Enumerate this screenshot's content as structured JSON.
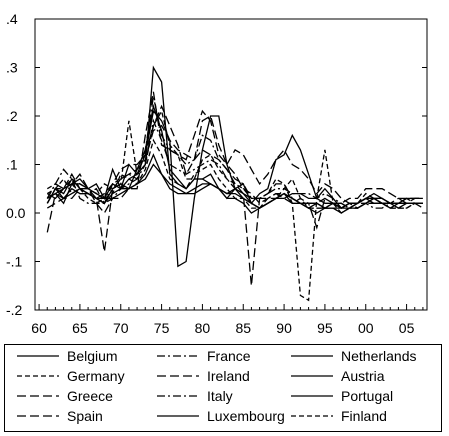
{
  "chart_data": {
    "type": "line",
    "title": "",
    "xlabel": "",
    "ylabel": "",
    "xlim": [
      1959.5,
      2007.5
    ],
    "ylim": [
      -0.2,
      0.4
    ],
    "x_ticks": [
      60,
      65,
      70,
      75,
      80,
      85,
      90,
      95,
      0,
      5
    ],
    "x_tick_labels": [
      "60",
      "65",
      "70",
      "75",
      "80",
      "85",
      "90",
      "95",
      "00",
      "05"
    ],
    "y_ticks": [
      0.4,
      0.3,
      0.2,
      0.1,
      0.0,
      -0.1,
      -0.2
    ],
    "y_tick_labels": [
      ".4",
      ".3",
      ".2",
      ".1",
      "0.0",
      "-.1",
      "-.2"
    ],
    "grid": false,
    "legend_position": "bottom",
    "x": [
      1961,
      1962,
      1963,
      1964,
      1965,
      1966,
      1967,
      1968,
      1969,
      1970,
      1971,
      1972,
      1973,
      1974,
      1975,
      1976,
      1977,
      1978,
      1979,
      1980,
      1981,
      1982,
      1983,
      1984,
      1985,
      1986,
      1987,
      1988,
      1989,
      1990,
      1991,
      1992,
      1993,
      1994,
      1995,
      1996,
      1997,
      1998,
      1999,
      2000,
      2001,
      2002,
      2003,
      2004,
      2005,
      2006,
      2007
    ],
    "series": [
      {
        "name": "Belgium",
        "dash": "solid",
        "values": [
          0.02,
          0.05,
          0.04,
          0.07,
          0.05,
          0.04,
          0.03,
          0.02,
          0.05,
          0.06,
          0.05,
          0.09,
          0.13,
          0.22,
          0.17,
          0.09,
          0.07,
          0.05,
          0.07,
          0.07,
          0.08,
          0.05,
          0.04,
          0.05,
          0.03,
          0.02,
          0.01,
          0.02,
          0.03,
          0.04,
          0.03,
          0.02,
          0.01,
          0.0,
          0.01,
          0.01,
          0.0,
          0.01,
          0.02,
          0.03,
          0.02,
          0.02,
          0.02,
          0.01,
          0.02,
          0.02,
          0.02
        ]
      },
      {
        "name": "France",
        "dash": "dashdot",
        "values": [
          0.03,
          0.06,
          0.05,
          0.06,
          0.04,
          0.04,
          0.05,
          0.02,
          0.06,
          0.07,
          0.08,
          0.07,
          0.1,
          0.19,
          0.15,
          0.1,
          0.09,
          0.08,
          0.09,
          0.1,
          0.11,
          0.1,
          0.07,
          0.05,
          0.04,
          0.03,
          0.03,
          0.03,
          0.04,
          0.04,
          0.03,
          0.02,
          0.01,
          0.01,
          0.01,
          0.02,
          0.01,
          0.02,
          0.02,
          0.02,
          0.01,
          0.01,
          0.02,
          0.02,
          0.02,
          0.02,
          0.02
        ]
      },
      {
        "name": "Netherlands",
        "dash": "solid",
        "values": [
          0.04,
          0.03,
          0.05,
          0.06,
          0.06,
          0.05,
          0.04,
          0.03,
          0.06,
          0.05,
          0.07,
          0.08,
          0.1,
          0.3,
          0.27,
          0.08,
          0.06,
          0.05,
          0.07,
          0.07,
          0.06,
          0.05,
          0.03,
          0.03,
          0.02,
          0.0,
          0.01,
          0.02,
          0.03,
          0.04,
          0.02,
          0.02,
          0.01,
          0.02,
          0.01,
          0.01,
          0.01,
          0.02,
          0.02,
          0.03,
          0.03,
          0.03,
          0.02,
          0.02,
          0.02,
          0.02,
          0.02
        ]
      },
      {
        "name": "Germany",
        "dash": "dashed",
        "values": [
          0.04,
          0.05,
          0.07,
          0.04,
          0.05,
          0.03,
          0.02,
          0.03,
          0.04,
          0.08,
          0.07,
          0.06,
          0.09,
          0.15,
          0.12,
          0.07,
          0.06,
          0.05,
          0.08,
          0.09,
          0.1,
          0.07,
          0.05,
          0.03,
          0.03,
          0.01,
          0.01,
          0.03,
          0.03,
          0.05,
          0.07,
          0.03,
          0.01,
          0.01,
          0.01,
          0.01,
          0.0,
          0.01,
          0.01,
          0.02,
          0.02,
          0.02,
          0.01,
          0.01,
          0.01,
          0.02,
          0.02
        ]
      },
      {
        "name": "Ireland",
        "dash": "longdash",
        "values": [
          0.02,
          0.05,
          0.05,
          0.08,
          0.05,
          0.04,
          0.03,
          0.04,
          0.06,
          0.09,
          0.1,
          0.1,
          0.12,
          0.18,
          0.22,
          0.18,
          0.14,
          0.08,
          0.11,
          0.19,
          0.2,
          0.14,
          0.1,
          0.08,
          0.05,
          0.04,
          0.02,
          0.03,
          0.04,
          0.03,
          0.02,
          0.03,
          0.02,
          0.02,
          0.03,
          0.02,
          0.02,
          0.03,
          0.03,
          0.05,
          0.05,
          0.05,
          0.04,
          0.03,
          0.02,
          0.03,
          0.03
        ]
      },
      {
        "name": "Austria",
        "dash": "solid",
        "values": [
          0.03,
          0.04,
          0.03,
          0.04,
          0.05,
          0.04,
          0.03,
          0.03,
          0.03,
          0.04,
          0.05,
          0.06,
          0.07,
          0.1,
          0.08,
          0.06,
          0.05,
          0.04,
          0.04,
          0.05,
          0.06,
          0.05,
          0.03,
          0.05,
          0.04,
          0.02,
          0.01,
          0.02,
          0.03,
          0.03,
          0.04,
          0.04,
          0.03,
          0.03,
          0.02,
          0.02,
          0.01,
          0.01,
          0.01,
          0.02,
          0.03,
          0.02,
          0.01,
          0.02,
          0.02,
          0.02,
          0.02
        ]
      },
      {
        "name": "Greece",
        "dash": "longdash",
        "values": [
          0.01,
          0.02,
          0.03,
          0.03,
          0.05,
          0.05,
          0.02,
          0.0,
          0.03,
          0.03,
          0.05,
          0.05,
          0.16,
          0.25,
          0.14,
          0.13,
          0.12,
          0.11,
          0.16,
          0.21,
          0.19,
          0.12,
          0.1,
          0.13,
          0.12,
          0.09,
          0.06,
          0.08,
          0.11,
          0.13,
          0.1,
          0.09,
          0.07,
          0.04,
          0.06,
          0.05,
          0.03,
          0.02,
          0.01,
          0.02,
          0.03,
          0.02,
          0.02,
          0.02,
          0.03,
          0.02,
          0.01
        ]
      },
      {
        "name": "Italy",
        "dash": "dashdot",
        "values": [
          0.03,
          0.06,
          0.09,
          0.07,
          0.03,
          0.02,
          0.02,
          0.02,
          0.03,
          0.05,
          0.06,
          0.07,
          0.13,
          0.24,
          0.16,
          0.13,
          0.12,
          0.1,
          0.11,
          0.16,
          0.15,
          0.11,
          0.09,
          0.07,
          0.06,
          0.03,
          0.03,
          0.04,
          0.05,
          0.05,
          0.04,
          0.04,
          0.04,
          0.03,
          0.04,
          0.03,
          0.02,
          0.01,
          0.01,
          0.02,
          0.02,
          0.02,
          0.02,
          0.02,
          0.02,
          0.02,
          0.02
        ]
      },
      {
        "name": "Portugal",
        "dash": "solid",
        "values": [
          0.03,
          0.04,
          0.02,
          0.06,
          0.07,
          0.05,
          0.06,
          0.03,
          0.09,
          0.05,
          0.1,
          0.08,
          0.12,
          0.21,
          0.19,
          0.15,
          -0.11,
          -0.1,
          0.03,
          0.13,
          0.2,
          0.2,
          0.1,
          0.05,
          0.06,
          0.02,
          0.04,
          0.05,
          0.11,
          0.12,
          0.16,
          0.13,
          0.08,
          0.03,
          0.05,
          0.03,
          0.01,
          0.02,
          0.02,
          0.03,
          0.04,
          0.03,
          0.02,
          0.02,
          0.02,
          0.02,
          0.02
        ]
      },
      {
        "name": "Spain",
        "dash": "longdash",
        "values": [
          -0.04,
          0.04,
          0.05,
          0.06,
          0.08,
          0.05,
          0.03,
          -0.08,
          0.05,
          0.07,
          0.08,
          0.09,
          0.11,
          0.17,
          0.18,
          0.15,
          0.13,
          0.12,
          0.11,
          0.13,
          0.12,
          0.11,
          0.09,
          0.06,
          0.04,
          -0.15,
          0.03,
          0.04,
          0.06,
          0.06,
          0.03,
          0.02,
          0.02,
          -0.03,
          0.03,
          0.02,
          0.02,
          0.01,
          0.02,
          0.03,
          0.03,
          0.03,
          0.02,
          0.03,
          0.03,
          0.03,
          0.03
        ]
      },
      {
        "name": "Luxembourg",
        "dash": "solid",
        "values": [
          0.02,
          0.05,
          0.03,
          0.05,
          0.04,
          0.04,
          0.03,
          0.02,
          0.04,
          0.05,
          0.05,
          0.06,
          0.08,
          0.12,
          0.08,
          0.05,
          0.04,
          0.04,
          0.05,
          0.06,
          0.06,
          0.05,
          0.04,
          0.04,
          0.03,
          0.02,
          0.01,
          0.02,
          0.03,
          0.04,
          0.03,
          0.02,
          0.02,
          0.02,
          0.01,
          0.02,
          0.01,
          0.02,
          0.02,
          0.03,
          0.03,
          0.02,
          0.02,
          0.02,
          0.03,
          0.03,
          0.03
        ]
      },
      {
        "name": "Finland",
        "dash": "dashed",
        "values": [
          0.05,
          0.06,
          0.05,
          0.07,
          0.06,
          0.05,
          0.04,
          0.06,
          0.05,
          0.06,
          0.19,
          0.08,
          0.1,
          0.18,
          0.21,
          0.14,
          0.12,
          0.07,
          0.07,
          0.11,
          0.12,
          0.09,
          0.07,
          0.06,
          0.05,
          0.03,
          0.03,
          0.04,
          0.07,
          0.06,
          0.02,
          -0.17,
          -0.18,
          0.03,
          0.13,
          0.02,
          0.0,
          0.01,
          0.02,
          0.04,
          0.03,
          0.02,
          0.01,
          0.01,
          0.01,
          0.02,
          0.02
        ]
      }
    ]
  }
}
